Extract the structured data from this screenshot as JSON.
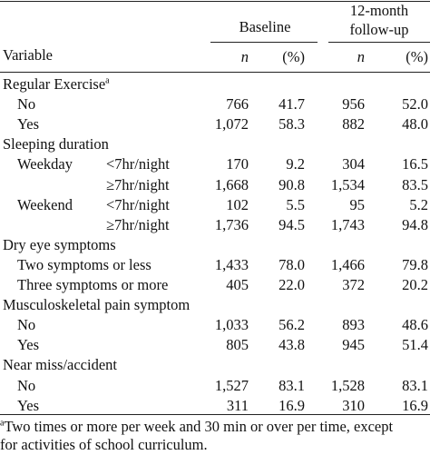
{
  "header": {
    "baseline": "Baseline",
    "followup_line1": "12-month",
    "followup_line2": "follow-up",
    "variable": "Variable",
    "n": "n",
    "pct": "(%)"
  },
  "rows": [
    {
      "type": "section",
      "label": "Regular Exercise",
      "sup": "a"
    },
    {
      "type": "data",
      "label": "No",
      "sub": "",
      "bn": "766",
      "bp": "41.7",
      "fn": "956",
      "fp": "52.0"
    },
    {
      "type": "data",
      "label": "Yes",
      "sub": "",
      "bn": "1,072",
      "bp": "58.3",
      "fn": "882",
      "fp": "48.0"
    },
    {
      "type": "section",
      "label": "Sleeping duration",
      "sup": ""
    },
    {
      "type": "data",
      "label": "Weekday",
      "sub": "<7hr/night",
      "bn": "170",
      "bp": "9.2",
      "fn": "304",
      "fp": "16.5"
    },
    {
      "type": "data",
      "label": "",
      "sub": "≥7hr/night",
      "bn": "1,668",
      "bp": "90.8",
      "fn": "1,534",
      "fp": "83.5"
    },
    {
      "type": "data",
      "label": "Weekend",
      "sub": "<7hr/night",
      "bn": "102",
      "bp": "5.5",
      "fn": "95",
      "fp": "5.2"
    },
    {
      "type": "data",
      "label": "",
      "sub": "≥7hr/night",
      "bn": "1,736",
      "bp": "94.5",
      "fn": "1,743",
      "fp": "94.8"
    },
    {
      "type": "section",
      "label": "Dry eye symptoms",
      "sup": ""
    },
    {
      "type": "data",
      "label": "Two symptoms or less",
      "sub": "",
      "bn": "1,433",
      "bp": "78.0",
      "fn": "1,466",
      "fp": "79.8"
    },
    {
      "type": "data",
      "label": "Three symptoms or more",
      "sub": "",
      "bn": "405",
      "bp": "22.0",
      "fn": "372",
      "fp": "20.2"
    },
    {
      "type": "section",
      "label": "Musculoskeletal pain symptom",
      "sup": ""
    },
    {
      "type": "data",
      "label": "No",
      "sub": "",
      "bn": "1,033",
      "bp": "56.2",
      "fn": "893",
      "fp": "48.6"
    },
    {
      "type": "data",
      "label": "Yes",
      "sub": "",
      "bn": "805",
      "bp": "43.8",
      "fn": "945",
      "fp": "51.4"
    },
    {
      "type": "section",
      "label": "Near miss/accident",
      "sup": ""
    },
    {
      "type": "data",
      "label": "No",
      "sub": "",
      "bn": "1,527",
      "bp": "83.1",
      "fn": "1,528",
      "fp": "83.1"
    },
    {
      "type": "data",
      "label": "Yes",
      "sub": "",
      "bn": "311",
      "bp": "16.9",
      "fn": "310",
      "fp": "16.9"
    }
  ],
  "footnote": {
    "marker": "a",
    "line1": "Two times or more per week and 30 min or over per time, except",
    "line2": "for activities of school curriculum."
  }
}
